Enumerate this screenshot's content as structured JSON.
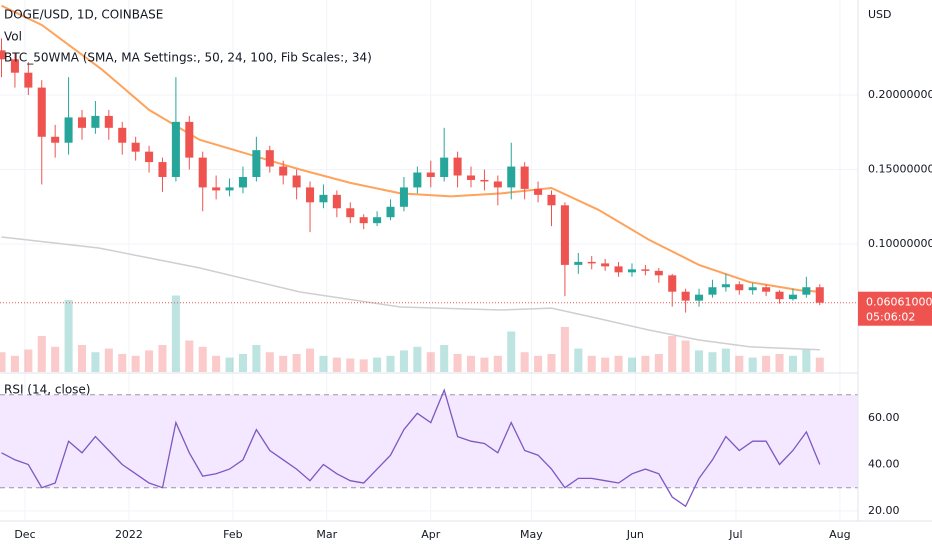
{
  "chart_data": {
    "type": "candlestick",
    "title": "DOGE/USD, 1D, COINBASE",
    "volume_label": "Vol",
    "indicator_label": "BTC_50WMA (SMA, MA Settings:, 50, 24, 100, Fib Scales:, 34)",
    "currency": "USD",
    "up_color": "#26a69a",
    "down_color": "#ef5350",
    "grid": true,
    "x": [
      -7,
      -3,
      1,
      5,
      9,
      13,
      17,
      21,
      25,
      29,
      33,
      37,
      41,
      45,
      49,
      53,
      57,
      61,
      65,
      69,
      73,
      77,
      81,
      85,
      89,
      93,
      97,
      101,
      105,
      109,
      113,
      117,
      121,
      125,
      129,
      133,
      137,
      141,
      145,
      149,
      153,
      157,
      161,
      165,
      169,
      173,
      177,
      181,
      185,
      189,
      193,
      197,
      201,
      205,
      209,
      213,
      217,
      221,
      225,
      229,
      233,
      237
    ],
    "open": [
      0.23,
      0.224,
      0.215,
      0.205,
      0.172,
      0.168,
      0.185,
      0.178,
      0.186,
      0.178,
      0.168,
      0.162,
      0.155,
      0.145,
      0.182,
      0.158,
      0.138,
      0.136,
      0.138,
      0.145,
      0.163,
      0.152,
      0.146,
      0.138,
      0.128,
      0.133,
      0.124,
      0.118,
      0.114,
      0.118,
      0.125,
      0.138,
      0.148,
      0.145,
      0.158,
      0.146,
      0.143,
      0.142,
      0.138,
      0.152,
      0.137,
      0.133,
      0.126,
      0.086,
      0.088,
      0.087,
      0.085,
      0.081,
      0.083,
      0.082,
      0.079,
      0.068,
      0.062,
      0.066,
      0.071,
      0.073,
      0.069,
      0.071,
      0.068,
      0.063,
      0.066,
      0.071
    ],
    "high": [
      0.238,
      0.228,
      0.222,
      0.21,
      0.18,
      0.212,
      0.19,
      0.196,
      0.19,
      0.182,
      0.172,
      0.166,
      0.158,
      0.212,
      0.186,
      0.162,
      0.146,
      0.144,
      0.152,
      0.172,
      0.166,
      0.156,
      0.15,
      0.142,
      0.14,
      0.136,
      0.128,
      0.12,
      0.122,
      0.13,
      0.145,
      0.152,
      0.156,
      0.178,
      0.162,
      0.152,
      0.15,
      0.146,
      0.168,
      0.155,
      0.142,
      0.136,
      0.128,
      0.094,
      0.092,
      0.09,
      0.088,
      0.087,
      0.086,
      0.084,
      0.08,
      0.07,
      0.07,
      0.076,
      0.08,
      0.075,
      0.074,
      0.073,
      0.069,
      0.07,
      0.078,
      0.073
    ],
    "low": [
      0.212,
      0.205,
      0.2,
      0.14,
      0.158,
      0.16,
      0.17,
      0.174,
      0.17,
      0.16,
      0.156,
      0.148,
      0.135,
      0.142,
      0.15,
      0.122,
      0.13,
      0.132,
      0.134,
      0.142,
      0.148,
      0.14,
      0.13,
      0.108,
      0.124,
      0.118,
      0.114,
      0.11,
      0.112,
      0.116,
      0.122,
      0.134,
      0.138,
      0.142,
      0.138,
      0.138,
      0.136,
      0.126,
      0.13,
      0.13,
      0.128,
      0.112,
      0.065,
      0.08,
      0.083,
      0.082,
      0.078,
      0.078,
      0.079,
      0.074,
      0.058,
      0.054,
      0.058,
      0.064,
      0.068,
      0.066,
      0.066,
      0.065,
      0.06,
      0.062,
      0.064,
      0.059
    ],
    "close": [
      0.224,
      0.215,
      0.205,
      0.172,
      0.168,
      0.185,
      0.178,
      0.186,
      0.178,
      0.168,
      0.162,
      0.155,
      0.145,
      0.182,
      0.158,
      0.138,
      0.136,
      0.138,
      0.145,
      0.163,
      0.152,
      0.146,
      0.138,
      0.128,
      0.133,
      0.124,
      0.118,
      0.114,
      0.118,
      0.125,
      0.138,
      0.148,
      0.145,
      0.158,
      0.146,
      0.143,
      0.142,
      0.138,
      0.152,
      0.137,
      0.133,
      0.126,
      0.086,
      0.088,
      0.087,
      0.085,
      0.081,
      0.083,
      0.082,
      0.079,
      0.068,
      0.062,
      0.066,
      0.071,
      0.073,
      0.069,
      0.071,
      0.068,
      0.063,
      0.066,
      0.071,
      0.06061
    ],
    "volume": [
      22,
      18,
      25,
      40,
      28,
      80,
      30,
      22,
      26,
      20,
      18,
      24,
      30,
      85,
      35,
      28,
      18,
      16,
      20,
      30,
      22,
      18,
      20,
      26,
      18,
      16,
      15,
      14,
      16,
      18,
      24,
      28,
      22,
      30,
      20,
      18,
      16,
      18,
      45,
      22,
      18,
      20,
      50,
      26,
      18,
      16,
      18,
      16,
      18,
      20,
      40,
      35,
      24,
      22,
      26,
      18,
      16,
      18,
      20,
      18,
      25,
      16
    ],
    "vlim": [
      0,
      100
    ],
    "xlim": [
      -7.45,
      248.4
    ],
    "xticks": [
      {
        "value": 0,
        "label": "Dec"
      },
      {
        "value": 31,
        "label": "2022"
      },
      {
        "value": 62,
        "label": "Feb"
      },
      {
        "value": 90,
        "label": "Mar"
      },
      {
        "value": 121,
        "label": "Apr"
      },
      {
        "value": 151,
        "label": "May"
      },
      {
        "value": 182,
        "label": "Jun"
      },
      {
        "value": 212,
        "label": "Jul"
      },
      {
        "value": 243,
        "label": "Aug"
      }
    ],
    "ylim": [
      0.0141,
      0.2638
    ],
    "yticks": [
      {
        "value": 0.1,
        "label": "0.10000000"
      },
      {
        "value": 0.15,
        "label": "0.15000000"
      },
      {
        "value": 0.2,
        "label": "0.20000000"
      }
    ],
    "overlays": [
      {
        "color": "#ffa35c",
        "x": [
          -7,
          5,
          23,
          37,
          52,
          67,
          82,
          97,
          112,
          127,
          142,
          157,
          171,
          186,
          201,
          216,
          231,
          237
        ],
        "values": [
          0.26,
          0.247,
          0.217,
          0.19,
          0.17,
          0.16,
          0.15,
          0.141,
          0.134,
          0.132,
          0.134,
          0.1376,
          0.123,
          0.103,
          0.086,
          0.0745,
          0.069,
          0.068
        ]
      },
      {
        "color": "#cfcfcf",
        "x": [
          -7,
          22,
          52,
          82,
          112,
          142,
          157,
          171,
          186,
          201,
          216,
          237
        ],
        "values": [
          0.1047,
          0.0973,
          0.084,
          0.0678,
          0.0577,
          0.0557,
          0.057,
          0.05,
          0.0423,
          0.0356,
          0.031,
          0.029
        ]
      }
    ],
    "last_price": {
      "value": 0.06061,
      "label": "0.06061000",
      "countdown": "05:06:02",
      "color": "#ef5350"
    },
    "rsi": {
      "title": "RSI (14, close)",
      "color": "#7e57c2",
      "band_color": "#f3e8ff",
      "bands": [
        30,
        70
      ],
      "ylim": [
        16.1,
        77.2
      ],
      "yticks": [
        {
          "value": 20,
          "label": "20.00"
        },
        {
          "value": 40,
          "label": "40.00"
        },
        {
          "value": 60,
          "label": "60.00"
        }
      ],
      "values": [
        45,
        42,
        40,
        30,
        32,
        50,
        45,
        52,
        46,
        40,
        36,
        32,
        30,
        58,
        45,
        35,
        36,
        38,
        42,
        55,
        46,
        42,
        38,
        33,
        40,
        36,
        33,
        32,
        38,
        44,
        55,
        62,
        58,
        72,
        52,
        50,
        49,
        45,
        58,
        46,
        44,
        38,
        30,
        34,
        34,
        33,
        32,
        36,
        38,
        36,
        26,
        22,
        34,
        42,
        52,
        46,
        50,
        50,
        40,
        46,
        54,
        40
      ]
    }
  }
}
